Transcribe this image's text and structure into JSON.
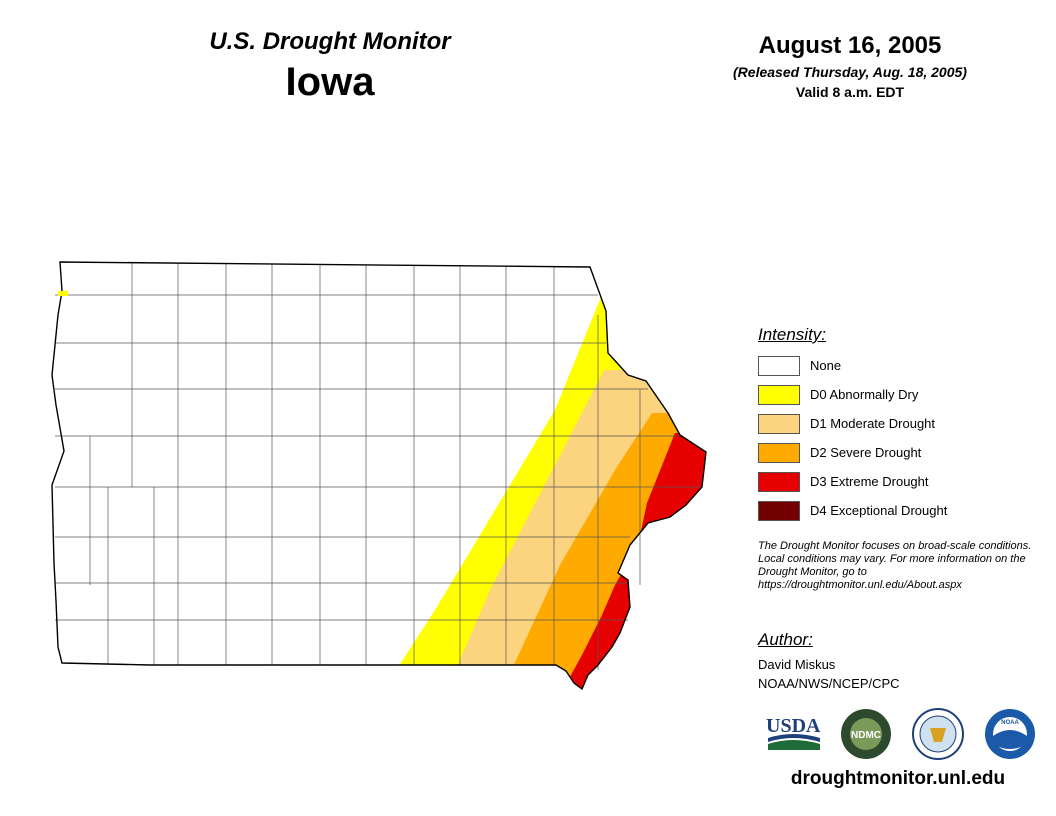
{
  "header": {
    "title": "U.S. Drought Monitor",
    "state": "Iowa",
    "date": "August 16, 2005",
    "released": "(Released Thursday, Aug. 18, 2005)",
    "valid": "Valid 8 a.m. EDT"
  },
  "legend": {
    "heading": "Intensity:",
    "items": [
      {
        "label": "None",
        "color": "#ffffff"
      },
      {
        "label": "D0 Abnormally Dry",
        "color": "#ffff00"
      },
      {
        "label": "D1 Moderate Drought",
        "color": "#fcd37f"
      },
      {
        "label": "D2 Severe Drought",
        "color": "#ffaa00"
      },
      {
        "label": "D3 Extreme Drought",
        "color": "#e60000"
      },
      {
        "label": "D4 Exceptional Drought",
        "color": "#730000"
      }
    ]
  },
  "note": "The Drought Monitor focuses on broad-scale conditions. Local conditions may vary. For more information on the Drought Monitor, go to https://droughtmonitor.unl.edu/About.aspx",
  "author": {
    "heading": "Author:",
    "name": "David Miskus",
    "org": "NOAA/NWS/NCEP/CPC"
  },
  "logos": {
    "usda": "USDA",
    "ndmc": "NDMC",
    "noaa": "NOAA"
  },
  "website": "droughtmonitor.unl.edu"
}
